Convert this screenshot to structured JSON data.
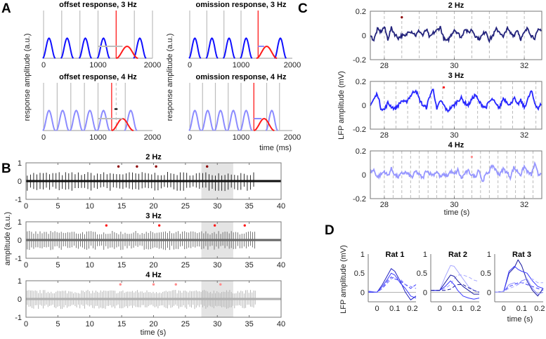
{
  "panel_labels": [
    "A",
    "B",
    "C",
    "D"
  ],
  "colors": {
    "dark_blue": "#0b0b6e",
    "blue": "#1010ff",
    "light_blue": "#8c8cff",
    "red": "#ff1a1a",
    "dark_red": "#8b0000",
    "pink": "#ff8c8c",
    "gray": "#bdbdbd",
    "shade": "#e4e4e4"
  },
  "chart_data": [
    {
      "id": "A",
      "type": "line",
      "ylabel": "response amplitude (a.u.)",
      "xlabel": "time (ms)",
      "xlim": [
        0,
        2000
      ],
      "xticks": [
        "0",
        "1000",
        "2000"
      ],
      "subplots": [
        {
          "title": "offset response, 3 Hz",
          "stimuli": [
            0,
            333,
            667,
            1000,
            1667,
            2000
          ],
          "red_line": 1333,
          "peaks": [
            100,
            433,
            767,
            1100,
            1767
          ],
          "peak_height": 0.42,
          "red_peak": 1533,
          "red_height": 0.25,
          "bar": [
            1000,
            1450
          ],
          "bar_color": "gray",
          "response_color": "blue"
        },
        {
          "title": "omission response, 3 Hz",
          "stimuli": [
            0,
            333,
            667,
            1000
          ],
          "red_line": 1333,
          "peaks": [
            100,
            433,
            767,
            1100,
            1767
          ],
          "peak_height": 0.42,
          "red_peak": 1500,
          "red_height": 0.25,
          "bar": [
            1333,
            1450
          ],
          "bar_color": "light_blue",
          "response_color": "blue"
        },
        {
          "title": "offset response, 4 Hz",
          "stimuli": [
            0,
            250,
            500,
            750,
            1000,
            1500
          ],
          "red_line": 1250,
          "dashed_line": 1333,
          "peaks": [
            100,
            350,
            600,
            850,
            1100,
            1600
          ],
          "peak_height": 0.42,
          "red_peak": 1450,
          "red_height": 0.25,
          "bar": [
            1000,
            1450
          ],
          "bar_color": "gray",
          "marker": [
            1250,
            1333
          ],
          "response_color": "light_blue"
        },
        {
          "title": "omission response, 4 Hz",
          "stimuli": [
            0,
            250,
            500,
            750,
            1000,
            1500,
            1750
          ],
          "red_line": 1250,
          "peaks": [
            100,
            350,
            600,
            850,
            1100,
            1600
          ],
          "peak_height": 0.42,
          "red_peak": 1450,
          "red_height": 0.25,
          "bar": [
            1250,
            1400
          ],
          "bar_color": "light_blue",
          "response_color": "light_blue"
        }
      ]
    },
    {
      "id": "B",
      "type": "line",
      "ylabel": "amplitude (a.u.)",
      "xlabel": "time (s)",
      "xlim": [
        0,
        40
      ],
      "ylim": [
        -1,
        1
      ],
      "xticks": [
        "0",
        "5",
        "10",
        "15",
        "20",
        "25",
        "30",
        "35",
        "40"
      ],
      "yticks": [
        "1",
        "0",
        "-1"
      ],
      "shaded_interval": [
        27.5,
        32.5
      ],
      "subplots": [
        {
          "title": "2 Hz",
          "rate_hz": 2,
          "signal_end": 36,
          "trace_color": "#111111",
          "dot_color": "dark_red",
          "events": [
            14.5,
            17.4,
            20.4,
            28.4
          ],
          "event_level": 0.8
        },
        {
          "title": "3 Hz",
          "rate_hz": 3,
          "signal_end": 36,
          "trace_color": "#666666",
          "dot_color": "red",
          "events": [
            12.6,
            20.9,
            29.6,
            34.3
          ],
          "event_level": 0.8
        },
        {
          "title": "4 Hz",
          "rate_hz": 4,
          "signal_end": 36,
          "trace_color": "#b0b0b0",
          "dot_color": "pink",
          "events": [
            14.8,
            20.0,
            23.5,
            30.5
          ],
          "event_level": 0.8
        }
      ]
    },
    {
      "id": "C",
      "type": "line",
      "ylabel": "LFP amplitude (mV)",
      "xlabel": "time (s)",
      "xlim": [
        27.6,
        32.5
      ],
      "ylim": [
        -0.2,
        0.2
      ],
      "xticks": [
        "28",
        "30",
        "32"
      ],
      "yticks": [
        "0.2",
        "0",
        "-0.2"
      ],
      "sample_step_s": 0.1,
      "subplots": [
        {
          "title": "2 Hz",
          "rate_hz": 2,
          "color": "dark_blue",
          "dot_color": "dark_red",
          "event": [
            28.5,
            0.15
          ],
          "values": [
            0,
            -0.04,
            0.05,
            0.03,
            0.07,
            -0.03,
            0.06,
            0.01,
            -0.02,
            0.0,
            -0.01,
            0.04,
            0.03,
            0.0,
            0.04,
            0.0,
            0.05,
            -0.02,
            0.02,
            0.04,
            0.07,
            -0.03,
            -0.05,
            0.0,
            0.05,
            0.02,
            -0.02,
            0.06,
            0.02,
            0.05,
            0.0,
            -0.03,
            0.0,
            0.04,
            -0.04,
            0.0,
            0.05,
            0.03,
            -0.02,
            0.06,
            0.02,
            0.0,
            0.05,
            -0.03,
            0.02,
            0.06,
            0.0,
            -0.02,
            0.04,
            0.05
          ]
        },
        {
          "title": "3 Hz",
          "rate_hz": 3,
          "color": "blue",
          "dot_color": "red",
          "event": [
            29.7,
            0.15
          ],
          "values": [
            0.0,
            0.05,
            0.1,
            -0.02,
            -0.04,
            0.02,
            -0.01,
            -0.03,
            0.0,
            0.04,
            0.02,
            0.06,
            0.1,
            0.13,
            0.05,
            0.0,
            -0.02,
            0.08,
            0.14,
            -0.04,
            0.04,
            0.0,
            -0.05,
            -0.02,
            0.0,
            0.04,
            0.06,
            0.02,
            0.0,
            0.05,
            0.09,
            0.03,
            0.0,
            -0.02,
            0.03,
            0.05,
            0.0,
            -0.02,
            0.06,
            0.03,
            0.0,
            0.07,
            0.0,
            0.04,
            -0.02,
            0.05,
            0.12,
            0.02,
            -0.03,
            0.02
          ]
        },
        {
          "title": "4 Hz",
          "rate_hz": 4,
          "color": "light_blue",
          "dot_color": "pink",
          "event": [
            30.5,
            0.15
          ],
          "values": [
            0.02,
            0.04,
            -0.02,
            0.0,
            0.03,
            -0.01,
            0.05,
            0.0,
            -0.02,
            0.01,
            0.02,
            0.0,
            -0.02,
            0.03,
            0.0,
            -0.03,
            0.04,
            0.01,
            0.0,
            0.03,
            -0.02,
            0.0,
            -0.01,
            0.03,
            0.0,
            0.04,
            -0.03,
            0.01,
            0.03,
            0.0,
            -0.02,
            0.05,
            -0.06,
            0.0,
            0.03,
            0.08,
            0.03,
            0.0,
            0.05,
            0.02,
            -0.02,
            0.06,
            0.03,
            0.0,
            0.07,
            0.02,
            0.0,
            0.09,
            0.0,
            0.02
          ]
        }
      ]
    },
    {
      "id": "D",
      "type": "line",
      "ylabel": "LFP amplitude (mV)",
      "xlabel": "time (s)",
      "xlim": [
        -0.05,
        0.22
      ],
      "ylim": [
        -0.25,
        1
      ],
      "xticks": [
        "0",
        "0.1",
        "0.2"
      ],
      "yticks": [
        "1",
        "0.5",
        "0"
      ],
      "x": [
        -0.05,
        0,
        0.03,
        0.06,
        0.08,
        0.1,
        0.13,
        0.16,
        0.19,
        0.22
      ],
      "subplots": [
        {
          "title": "Rat 1",
          "series": [
            {
              "color": "#2020c0",
              "dashed": false,
              "values": [
                0,
                0,
                0.2,
                0.45,
                0.62,
                0.55,
                0.3,
                0.0,
                -0.2,
                -0.1
              ]
            },
            {
              "color": "#3a3aff",
              "dashed": false,
              "values": [
                0.02,
                0,
                0.15,
                0.35,
                0.5,
                0.45,
                0.25,
                0.1,
                -0.1,
                -0.15
              ]
            },
            {
              "color": "#3a3aff",
              "dashed": true,
              "values": [
                0,
                0,
                0.1,
                0.3,
                0.4,
                0.35,
                0.3,
                0.2,
                0.1,
                0.2
              ]
            },
            {
              "color": "#7070ff",
              "dashed": true,
              "values": [
                0.03,
                0,
                0.1,
                0.25,
                0.35,
                0.4,
                0.35,
                0.2,
                0.15,
                0.1
              ]
            }
          ]
        },
        {
          "title": "Rat 2",
          "series": [
            {
              "color": "#a8a8ff",
              "dashed": false,
              "values": [
                0.05,
                0.05,
                0.4,
                0.7,
                0.68,
                0.55,
                0.35,
                0.15,
                0.05,
                0.0
              ]
            },
            {
              "color": "#a8a8ff",
              "dashed": true,
              "values": [
                0.05,
                0.05,
                0.1,
                0.2,
                0.35,
                0.45,
                0.45,
                0.4,
                0.32,
                0.28
              ]
            },
            {
              "color": "#1a1aa0",
              "dashed": false,
              "values": [
                0.05,
                0.05,
                0.25,
                0.45,
                0.42,
                0.3,
                0.15,
                0.05,
                -0.05,
                -0.05
              ]
            },
            {
              "color": "#3a3aff",
              "dashed": false,
              "values": [
                0.05,
                0.05,
                0.15,
                0.3,
                0.2,
                0.05,
                -0.1,
                -0.15,
                -0.18,
                -0.15
              ]
            },
            {
              "color": "#1a1aa0",
              "dashed": true,
              "values": [
                0.05,
                0.05,
                0.05,
                0.08,
                0.15,
                0.2,
                0.2,
                0.12,
                0.05,
                0.0
              ]
            }
          ]
        },
        {
          "title": "Rat 3",
          "series": [
            {
              "color": "#1a1aa0",
              "dashed": false,
              "values": [
                0,
                0.02,
                0.5,
                0.65,
                0.85,
                0.7,
                0.3,
                0.05,
                -0.1,
                0.1
              ]
            },
            {
              "color": "#3a3aff",
              "dashed": false,
              "values": [
                0,
                0.02,
                0.55,
                0.68,
                0.6,
                0.55,
                0.5,
                0.3,
                0.15,
                0.1
              ]
            },
            {
              "color": "#3a3aff",
              "dashed": true,
              "values": [
                0,
                0.02,
                0.15,
                0.2,
                0.25,
                0.25,
                0.2,
                0.15,
                0.1,
                0.05
              ]
            },
            {
              "color": "#8c8cff",
              "dashed": false,
              "values": [
                0,
                0.02,
                0.2,
                0.25,
                0.2,
                0.3,
                0.35,
                0.1,
                -0.05,
                0.0
              ]
            },
            {
              "color": "#a8a8ff",
              "dashed": true,
              "values": [
                0,
                0.02,
                0.1,
                0.15,
                0.2,
                0.25,
                0.25,
                0.35,
                0.25,
                0.25
              ]
            }
          ]
        }
      ]
    }
  ]
}
